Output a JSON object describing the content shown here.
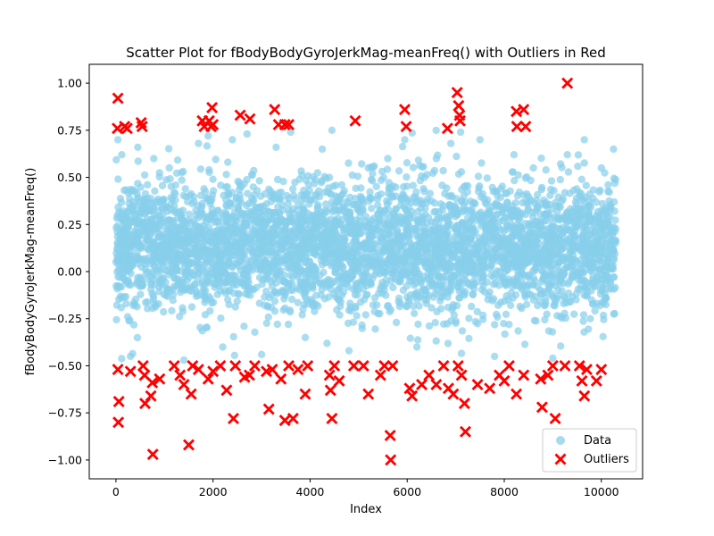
{
  "chart_data": {
    "type": "scatter",
    "title": "Scatter Plot for fBodyBodyGyroJerkMag-meanFreq() with Outliers in Red",
    "xlabel": "Index",
    "ylabel": "fBodyBodyGyroJerkMag-meanFreq()",
    "xlim": [
      -550,
      10850
    ],
    "ylim": [
      -1.1,
      1.1
    ],
    "xticks": [
      0,
      2000,
      4000,
      6000,
      8000,
      10000
    ],
    "xtick_labels": [
      "0",
      "2000",
      "4000",
      "6000",
      "8000",
      "10000"
    ],
    "yticks": [
      -1.0,
      -0.75,
      -0.5,
      -0.25,
      0.0,
      0.25,
      0.5,
      0.75,
      1.0
    ],
    "ytick_labels": [
      "−1.00",
      "−0.75",
      "−0.50",
      "−0.25",
      "0.00",
      "0.25",
      "0.50",
      "0.75",
      "1.00"
    ],
    "grid": false,
    "legend_position": "lower right",
    "n_points": 10299,
    "series": [
      {
        "name": "Data",
        "marker": "circle",
        "color": "#87CEEB",
        "alpha": 0.7,
        "y_range_observed": [
          -0.48,
          0.75
        ],
        "y_center": 0.13,
        "sample_points": [
          [
            40,
            0.7
          ],
          [
            120,
            0.62
          ],
          [
            300,
            -0.45
          ],
          [
            450,
            0.66
          ],
          [
            780,
            0.6
          ],
          [
            1100,
            0.55
          ],
          [
            1400,
            -0.47
          ],
          [
            1700,
            0.68
          ],
          [
            1900,
            0.72
          ],
          [
            2200,
            -0.4
          ],
          [
            2400,
            0.7
          ],
          [
            2700,
            0.73
          ],
          [
            3000,
            -0.44
          ],
          [
            3300,
            0.66
          ],
          [
            3600,
            0.74
          ],
          [
            3900,
            -0.35
          ],
          [
            4250,
            0.65
          ],
          [
            4450,
            0.75
          ],
          [
            4800,
            -0.42
          ],
          [
            5200,
            0.55
          ],
          [
            5600,
            0.6
          ],
          [
            5950,
            0.7
          ],
          [
            6200,
            -0.4
          ],
          [
            6600,
            0.6
          ],
          [
            6900,
            0.68
          ],
          [
            7100,
            0.74
          ],
          [
            7500,
            0.7
          ],
          [
            7800,
            -0.45
          ],
          [
            8200,
            0.62
          ],
          [
            8600,
            0.55
          ],
          [
            9000,
            -0.46
          ],
          [
            9300,
            0.62
          ],
          [
            9650,
            0.7
          ],
          [
            10000,
            0.55
          ],
          [
            10250,
            0.65
          ]
        ]
      },
      {
        "name": "Outliers",
        "marker": "X",
        "color": "#FF0000",
        "points": [
          [
            30,
            0.76
          ],
          [
            40,
            0.92
          ],
          [
            180,
            0.77
          ],
          [
            230,
            0.76
          ],
          [
            520,
            0.79
          ],
          [
            540,
            0.77
          ],
          [
            1780,
            0.8
          ],
          [
            1820,
            0.77
          ],
          [
            1920,
            0.8
          ],
          [
            1960,
            0.77
          ],
          [
            1980,
            0.87
          ],
          [
            2000,
            0.78
          ],
          [
            2560,
            0.83
          ],
          [
            2760,
            0.81
          ],
          [
            3270,
            0.86
          ],
          [
            3350,
            0.78
          ],
          [
            3480,
            0.78
          ],
          [
            3560,
            0.78
          ],
          [
            4930,
            0.8
          ],
          [
            5950,
            0.86
          ],
          [
            5980,
            0.77
          ],
          [
            6830,
            0.76
          ],
          [
            7030,
            0.95
          ],
          [
            7060,
            0.88
          ],
          [
            7080,
            0.83
          ],
          [
            7090,
            0.8
          ],
          [
            8250,
            0.85
          ],
          [
            8260,
            0.77
          ],
          [
            8400,
            0.86
          ],
          [
            8440,
            0.77
          ],
          [
            9300,
            1.0
          ],
          [
            40,
            -0.52
          ],
          [
            60,
            -0.69
          ],
          [
            50,
            -0.8
          ],
          [
            300,
            -0.53
          ],
          [
            560,
            -0.5
          ],
          [
            590,
            -0.55
          ],
          [
            600,
            -0.7
          ],
          [
            720,
            -0.66
          ],
          [
            750,
            -0.59
          ],
          [
            760,
            -0.97
          ],
          [
            900,
            -0.57
          ],
          [
            1200,
            -0.5
          ],
          [
            1320,
            -0.55
          ],
          [
            1400,
            -0.6
          ],
          [
            1500,
            -0.92
          ],
          [
            1550,
            -0.65
          ],
          [
            1580,
            -0.5
          ],
          [
            1700,
            -0.52
          ],
          [
            1900,
            -0.57
          ],
          [
            2000,
            -0.53
          ],
          [
            2150,
            -0.5
          ],
          [
            2280,
            -0.63
          ],
          [
            2420,
            -0.78
          ],
          [
            2460,
            -0.5
          ],
          [
            2650,
            -0.56
          ],
          [
            2750,
            -0.55
          ],
          [
            2860,
            -0.5
          ],
          [
            3100,
            -0.53
          ],
          [
            3150,
            -0.73
          ],
          [
            3220,
            -0.52
          ],
          [
            3400,
            -0.57
          ],
          [
            3480,
            -0.79
          ],
          [
            3560,
            -0.5
          ],
          [
            3650,
            -0.78
          ],
          [
            3750,
            -0.52
          ],
          [
            3900,
            -0.65
          ],
          [
            3950,
            -0.5
          ],
          [
            4400,
            -0.55
          ],
          [
            4420,
            -0.63
          ],
          [
            4450,
            -0.78
          ],
          [
            4500,
            -0.5
          ],
          [
            4600,
            -0.58
          ],
          [
            4900,
            -0.5
          ],
          [
            5100,
            -0.5
          ],
          [
            5200,
            -0.65
          ],
          [
            5450,
            -0.55
          ],
          [
            5530,
            -0.5
          ],
          [
            5650,
            -0.87
          ],
          [
            5660,
            -1.0
          ],
          [
            5700,
            -0.5
          ],
          [
            6050,
            -0.62
          ],
          [
            6100,
            -0.66
          ],
          [
            6300,
            -0.6
          ],
          [
            6450,
            -0.55
          ],
          [
            6600,
            -0.6
          ],
          [
            6750,
            -0.5
          ],
          [
            6850,
            -0.62
          ],
          [
            6950,
            -0.65
          ],
          [
            7050,
            -0.5
          ],
          [
            7120,
            -0.55
          ],
          [
            7180,
            -0.7
          ],
          [
            7200,
            -0.85
          ],
          [
            7450,
            -0.6
          ],
          [
            7700,
            -0.62
          ],
          [
            7900,
            -0.55
          ],
          [
            8000,
            -0.58
          ],
          [
            8100,
            -0.5
          ],
          [
            8250,
            -0.65
          ],
          [
            8400,
            -0.55
          ],
          [
            8750,
            -0.57
          ],
          [
            8780,
            -0.72
          ],
          [
            8900,
            -0.55
          ],
          [
            9000,
            -0.5
          ],
          [
            9050,
            -0.78
          ],
          [
            9250,
            -0.5
          ],
          [
            9550,
            -0.5
          ],
          [
            9600,
            -0.58
          ],
          [
            9650,
            -0.66
          ],
          [
            9700,
            -0.52
          ],
          [
            9900,
            -0.58
          ],
          [
            10000,
            -0.52
          ]
        ]
      }
    ]
  }
}
